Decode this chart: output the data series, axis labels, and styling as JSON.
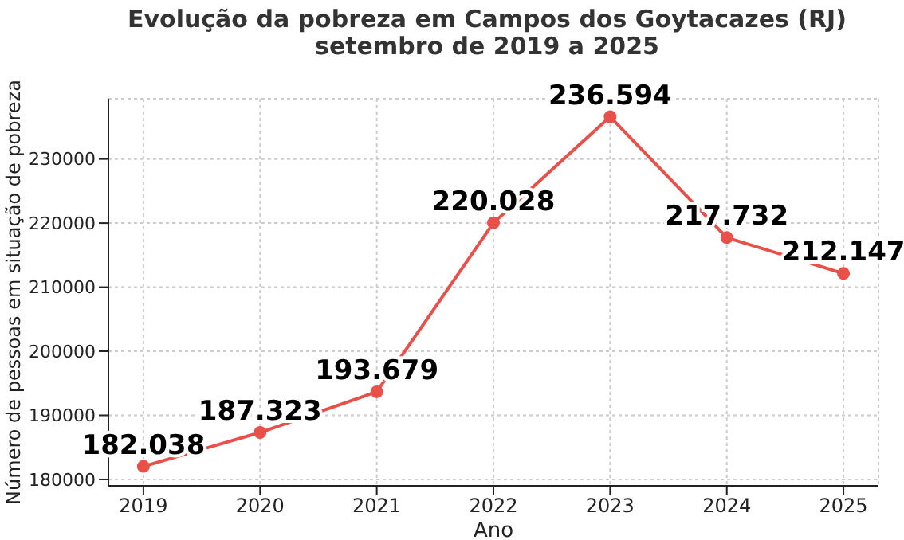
{
  "chart_data": {
    "type": "line",
    "title": "Evolução da pobreza em Campos dos Goytacazes (RJ)",
    "subtitle": "setembro de 2019 a 2025",
    "xlabel": "Ano",
    "ylabel": "Número de pessoas em situação de pobreza",
    "x": [
      2019,
      2020,
      2021,
      2022,
      2023,
      2024,
      2025
    ],
    "series": [
      {
        "color": "#e8504a",
        "values": [
          182038,
          187323,
          193679,
          220028,
          236594,
          217732,
          212147
        ],
        "value_labels": [
          "182.038",
          "187.323",
          "193.679",
          "220.028",
          "236.594",
          "217.732",
          "212.147"
        ]
      }
    ],
    "xlim": [
      2018.7,
      2025.3
    ],
    "xticks": [
      2019,
      2020,
      2021,
      2022,
      2023,
      2024,
      2025
    ],
    "ylim": [
      179000,
      239400
    ],
    "yticks": [
      180000,
      190000,
      200000,
      210000,
      220000,
      230000
    ],
    "grid": true,
    "marker": "circle",
    "line_style": "solid",
    "legend": false
  }
}
